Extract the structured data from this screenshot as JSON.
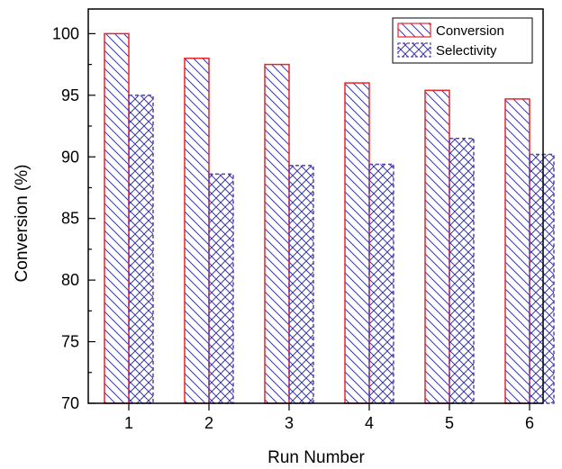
{
  "chart_data": {
    "type": "bar",
    "title": "",
    "xlabel": "Run Number",
    "ylabel": "Conversion (%)",
    "categories": [
      "1",
      "2",
      "3",
      "4",
      "5",
      "6"
    ],
    "ylim": [
      70,
      102
    ],
    "yticks": [
      70,
      75,
      80,
      85,
      90,
      95,
      100
    ],
    "grid": false,
    "legend_position": "top-right",
    "series": [
      {
        "name": "Conversion",
        "values": [
          100.0,
          98.0,
          97.5,
          96.0,
          95.4,
          94.7
        ],
        "edge_color": "#e8252a",
        "hatch_color": "#3b3b9e",
        "pattern": "diagonal-backslash",
        "edge_style": "solid"
      },
      {
        "name": "Selectivity",
        "values": [
          95.0,
          88.6,
          89.3,
          89.4,
          91.5,
          90.2
        ],
        "edge_color": "#5a3fb8",
        "hatch_color": "#3b3b9e",
        "pattern": "crosshatch",
        "edge_style": "dashed"
      }
    ]
  }
}
